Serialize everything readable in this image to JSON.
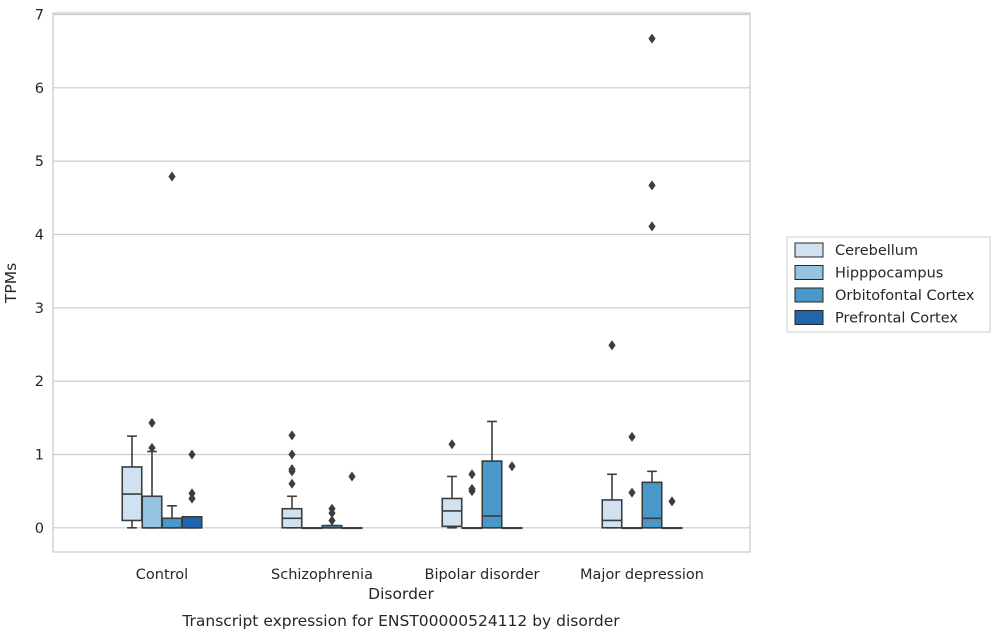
{
  "caption": "Transcript expression for ENST00000524112 by disorder",
  "chart_data": {
    "type": "box",
    "xlabel": "Disorder",
    "ylabel": "TPMs",
    "ylim": [
      -0.33,
      7.02
    ],
    "yticks": [
      "0",
      "1",
      "2",
      "3",
      "4",
      "5",
      "6",
      "7"
    ],
    "grid": "horizontal",
    "legend_position": "right",
    "categories": [
      "Control",
      "Schizophrenia",
      "Bipolar disorder",
      "Major depression"
    ],
    "series": [
      {
        "name": "Cerebellum",
        "color": "#d0e1f2",
        "boxes": [
          {
            "whislo": 0.0,
            "q1": 0.1,
            "med": 0.46,
            "q3": 0.83,
            "whishi": 1.25,
            "fliers": []
          },
          {
            "whislo": 0.0,
            "q1": 0.0,
            "med": 0.13,
            "q3": 0.26,
            "whishi": 0.43,
            "fliers": [
              0.6,
              0.77,
              0.8,
              1.0,
              1.26
            ]
          },
          {
            "whislo": 0.0,
            "q1": 0.02,
            "med": 0.23,
            "q3": 0.4,
            "whishi": 0.7,
            "fliers": [
              1.14
            ]
          },
          {
            "whislo": 0.0,
            "q1": 0.0,
            "med": 0.1,
            "q3": 0.38,
            "whishi": 0.73,
            "fliers": [
              2.49
            ]
          }
        ]
      },
      {
        "name": "Hipppocampus",
        "color": "#94c4df",
        "boxes": [
          {
            "whislo": 0.0,
            "q1": 0.0,
            "med": 0.0,
            "q3": 0.43,
            "whishi": 1.04,
            "fliers": [
              1.09,
              1.43
            ]
          },
          {
            "whislo": 0.0,
            "q1": 0.0,
            "med": 0.0,
            "q3": 0.0,
            "whishi": 0.0,
            "fliers": []
          },
          {
            "whislo": 0.0,
            "q1": 0.0,
            "med": 0.0,
            "q3": 0.0,
            "whishi": 0.0,
            "fliers": [
              0.5,
              0.53,
              0.73
            ]
          },
          {
            "whislo": 0.0,
            "q1": 0.0,
            "med": 0.0,
            "q3": 0.0,
            "whishi": 0.0,
            "fliers": [
              0.48,
              1.24
            ]
          }
        ]
      },
      {
        "name": "Orbitofontal Cortex",
        "color": "#4a98c9",
        "boxes": [
          {
            "whislo": 0.0,
            "q1": 0.0,
            "med": 0.0,
            "q3": 0.13,
            "whishi": 0.3,
            "fliers": [
              4.79
            ]
          },
          {
            "whislo": 0.0,
            "q1": 0.0,
            "med": 0.0,
            "q3": 0.03,
            "whishi": 0.03,
            "fliers": [
              0.1,
              0.2,
              0.26
            ]
          },
          {
            "whislo": 0.0,
            "q1": 0.0,
            "med": 0.16,
            "q3": 0.91,
            "whishi": 1.45,
            "fliers": []
          },
          {
            "whislo": 0.0,
            "q1": 0.0,
            "med": 0.13,
            "q3": 0.62,
            "whishi": 0.77,
            "fliers": [
              4.11,
              4.67,
              6.67
            ]
          }
        ]
      },
      {
        "name": "Prefrontal Cortex",
        "color": "#2166ac",
        "boxes": [
          {
            "whislo": 0.0,
            "q1": 0.0,
            "med": 0.0,
            "q3": 0.15,
            "whishi": 0.15,
            "fliers": [
              0.4,
              0.47,
              1.0
            ]
          },
          {
            "whislo": 0.0,
            "q1": 0.0,
            "med": 0.0,
            "q3": 0.0,
            "whishi": 0.0,
            "fliers": [
              0.7
            ]
          },
          {
            "whislo": 0.0,
            "q1": 0.0,
            "med": 0.0,
            "q3": 0.0,
            "whishi": 0.0,
            "fliers": [
              0.84
            ]
          },
          {
            "whislo": 0.0,
            "q1": 0.0,
            "med": 0.0,
            "q3": 0.0,
            "whishi": 0.0,
            "fliers": [
              0.36
            ]
          }
        ]
      }
    ]
  }
}
